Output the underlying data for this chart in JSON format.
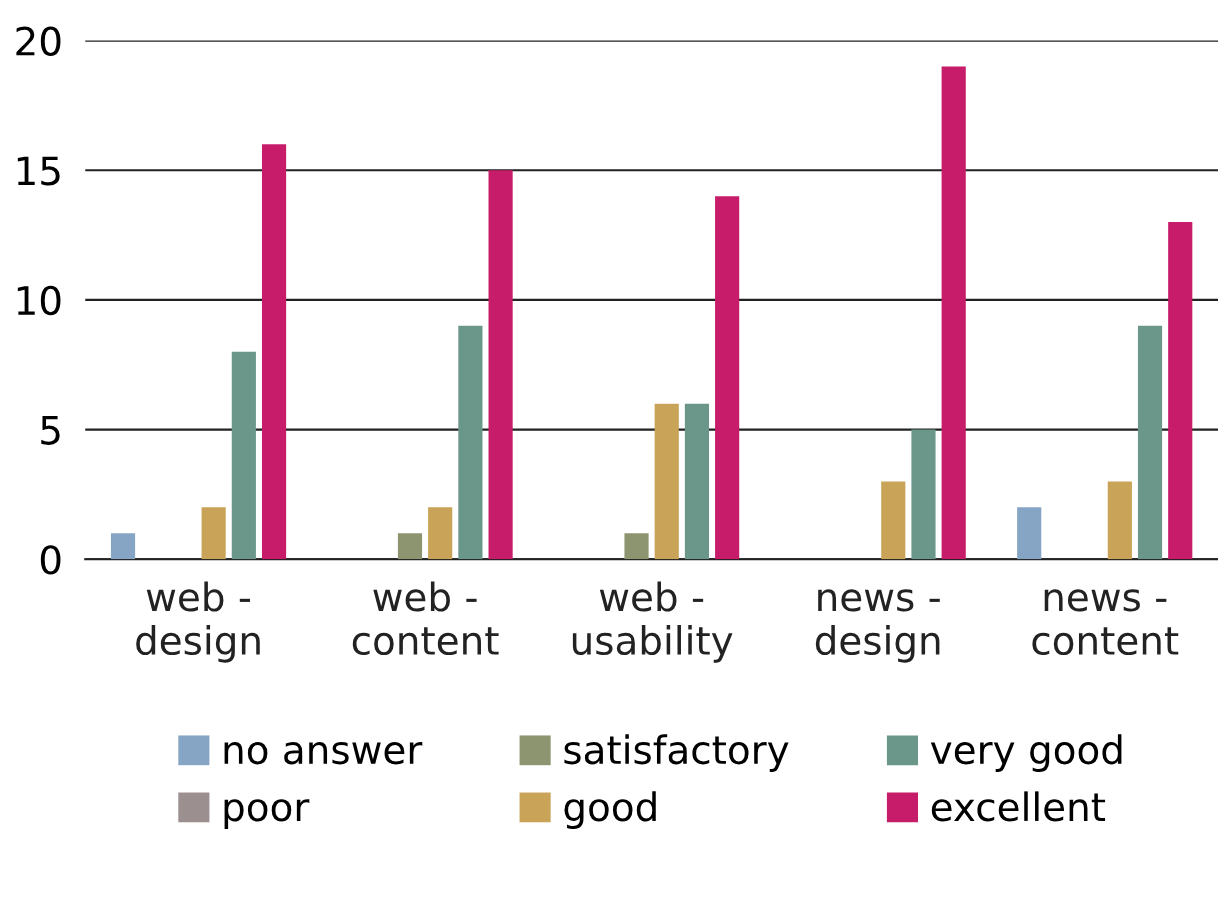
{
  "chart_data": {
    "type": "bar",
    "categories": [
      "web -\ndesign",
      "web -\ncontent",
      "web -\nusability",
      "news -\ndesign",
      "news -\ncontent"
    ],
    "series": [
      {
        "name": "no answer",
        "color": "#86a5c4",
        "values": [
          1,
          0,
          0,
          0,
          2
        ]
      },
      {
        "name": "poor",
        "color": "#9c8f8f",
        "values": [
          0,
          0,
          0,
          0,
          0
        ]
      },
      {
        "name": "satisfactory",
        "color": "#8c9570",
        "values": [
          0,
          1,
          1,
          0,
          0
        ]
      },
      {
        "name": "good",
        "color": "#c9a357",
        "values": [
          2,
          2,
          6,
          3,
          3
        ]
      },
      {
        "name": "very good",
        "color": "#6b978b",
        "values": [
          8,
          9,
          6,
          5,
          9
        ]
      },
      {
        "name": "excellent",
        "color": "#c71c6a",
        "values": [
          16,
          15,
          14,
          19,
          13
        ]
      }
    ],
    "ylim": [
      0,
      20
    ],
    "yticks": [
      0,
      5,
      10,
      15,
      20
    ],
    "grid": "y",
    "legend": "bottom"
  }
}
